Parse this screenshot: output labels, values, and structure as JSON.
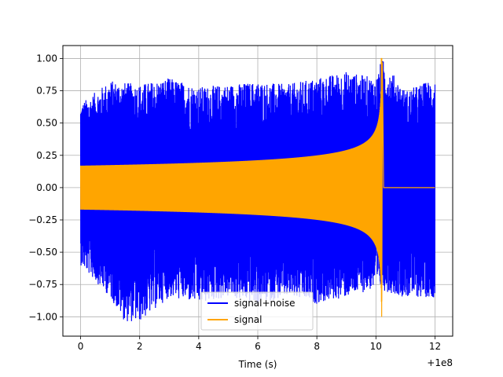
{
  "chart_data": {
    "type": "line",
    "title": "",
    "xlabel": "Time (s)",
    "ylabel": "",
    "x_offset_label": "+1e8",
    "xlim": [
      -0.6,
      12.6
    ],
    "ylim": [
      -1.15,
      1.1
    ],
    "x_ticks": [
      0,
      2,
      4,
      6,
      8,
      10,
      12
    ],
    "x_tick_labels": [
      "0",
      "2",
      "4",
      "6",
      "8",
      "10",
      "12"
    ],
    "y_ticks": [
      -1.0,
      -0.75,
      -0.5,
      -0.25,
      0.0,
      0.25,
      0.5,
      0.75,
      1.0
    ],
    "y_tick_labels": [
      "−1.00",
      "−0.75",
      "−0.50",
      "−0.25",
      "0.00",
      "0.25",
      "0.50",
      "0.75",
      "1.00"
    ],
    "grid": true,
    "legend_position": "lower-center",
    "series": [
      {
        "name": "signal+noise",
        "color": "#0000ff",
        "x_range": [
          0,
          12
        ],
        "envelope_upper": [
          [
            0,
            0.65
          ],
          [
            1,
            0.83
          ],
          [
            2,
            0.8
          ],
          [
            3,
            0.85
          ],
          [
            4,
            0.78
          ],
          [
            5,
            0.8
          ],
          [
            6,
            0.82
          ],
          [
            7,
            0.8
          ],
          [
            8,
            0.85
          ],
          [
            9,
            0.9
          ],
          [
            10,
            0.85
          ],
          [
            10.2,
            1.0
          ],
          [
            11,
            0.75
          ],
          [
            12,
            0.85
          ]
        ],
        "envelope_lower": [
          [
            0,
            -0.6
          ],
          [
            1,
            -0.85
          ],
          [
            1.5,
            -1.04
          ],
          [
            2,
            -1.04
          ],
          [
            3,
            -0.85
          ],
          [
            4,
            -0.9
          ],
          [
            5,
            -0.85
          ],
          [
            6,
            -0.9
          ],
          [
            7,
            -0.85
          ],
          [
            8,
            -0.9
          ],
          [
            9,
            -0.85
          ],
          [
            10,
            -0.78
          ],
          [
            11,
            -0.85
          ],
          [
            12,
            -0.85
          ]
        ]
      },
      {
        "name": "signal",
        "color": "#ffa500",
        "x_range": [
          0,
          12
        ],
        "chirp_end": 10.2,
        "amplitude_start": 0.17,
        "peak_value": 1.0,
        "trough_value": -0.88,
        "post_value": 0.0
      }
    ]
  }
}
